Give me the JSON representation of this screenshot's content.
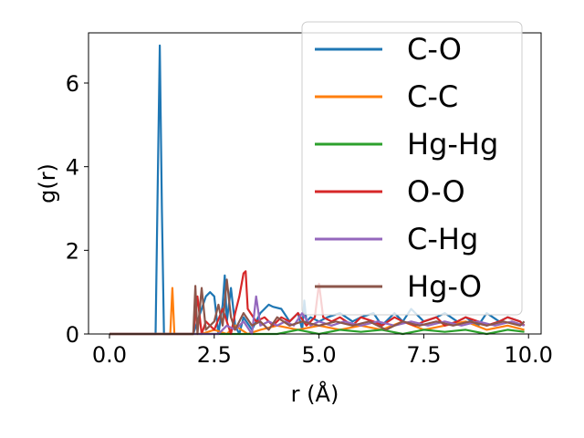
{
  "chart_data": {
    "type": "line",
    "xlabel": "r (Å)",
    "ylabel": "g(r)",
    "xlim": [
      -0.5,
      10.3
    ],
    "ylim": [
      0,
      7.2
    ],
    "xticks": [
      0.0,
      2.5,
      5.0,
      7.5,
      10.0
    ],
    "xtick_labels": [
      "0.0",
      "2.5",
      "5.0",
      "7.5",
      "10.0"
    ],
    "yticks": [
      0,
      2,
      4,
      6
    ],
    "ytick_labels": [
      "0",
      "2",
      "4",
      "6"
    ],
    "grid": false,
    "legend_position": "top-right",
    "series": [
      {
        "name": "C-O",
        "color": "#1f77b4",
        "x": [
          0.0,
          1.1,
          1.15,
          1.2,
          1.25,
          1.3,
          2.0,
          2.3,
          2.4,
          2.5,
          2.6,
          2.7,
          2.75,
          2.8,
          2.9,
          3.0,
          3.1,
          3.2,
          3.4,
          3.6,
          3.8,
          3.9,
          4.1,
          4.3,
          4.5,
          4.6,
          4.65,
          4.7,
          4.8,
          5.0,
          5.2,
          5.5,
          5.8,
          6.0,
          6.3,
          6.5,
          6.8,
          7.0,
          7.2,
          7.5,
          7.8,
          8.0,
          8.3,
          8.5,
          8.8,
          9.0,
          9.3,
          9.5,
          9.8,
          9.9
        ],
        "y": [
          0.0,
          0.0,
          3.5,
          6.9,
          3.0,
          0.0,
          0.0,
          0.9,
          1.0,
          0.9,
          0.0,
          0.7,
          1.4,
          0.3,
          1.1,
          0.2,
          0.0,
          0.4,
          0.1,
          0.5,
          0.7,
          0.65,
          0.6,
          0.3,
          0.5,
          0.1,
          0.8,
          0.3,
          0.4,
          0.3,
          0.4,
          0.5,
          0.3,
          0.4,
          0.5,
          0.2,
          0.5,
          0.3,
          0.6,
          0.3,
          0.4,
          0.5,
          0.3,
          0.4,
          0.2,
          0.5,
          0.3,
          0.4,
          0.3,
          0.2
        ]
      },
      {
        "name": "C-C",
        "color": "#ff7f0e",
        "x": [
          0.0,
          1.45,
          1.5,
          1.55,
          1.6,
          2.2,
          2.5,
          2.8,
          3.0,
          3.3,
          3.6,
          4.0,
          4.5,
          5.0,
          5.5,
          6.0,
          6.5,
          7.0,
          7.5,
          8.0,
          8.5,
          9.0,
          9.5,
          9.9
        ],
        "y": [
          0.0,
          0.0,
          1.1,
          0.0,
          0.0,
          0.0,
          0.1,
          0.0,
          0.2,
          0.0,
          0.1,
          0.2,
          0.1,
          0.2,
          0.1,
          0.2,
          0.1,
          0.3,
          0.1,
          0.2,
          0.3,
          0.1,
          0.2,
          0.1
        ]
      },
      {
        "name": "Hg-Hg",
        "color": "#2ca02c",
        "x": [
          0.0,
          3.0,
          3.5,
          4.0,
          4.5,
          5.0,
          5.5,
          6.0,
          6.5,
          7.0,
          7.5,
          8.0,
          8.5,
          9.0,
          9.5,
          9.9
        ],
        "y": [
          0.0,
          0.0,
          0.0,
          0.0,
          0.1,
          0.0,
          0.1,
          0.05,
          0.1,
          0.0,
          0.1,
          0.05,
          0.1,
          0.0,
          0.1,
          0.05
        ]
      },
      {
        "name": "O-O",
        "color": "#d62728",
        "x": [
          0.0,
          2.0,
          2.1,
          2.2,
          2.3,
          2.5,
          2.7,
          2.9,
          3.0,
          3.1,
          3.2,
          3.25,
          3.3,
          3.5,
          3.7,
          3.9,
          4.1,
          4.3,
          4.5,
          4.7,
          4.9,
          5.0,
          5.1,
          5.3,
          5.5,
          5.8,
          6.0,
          6.3,
          6.5,
          6.8,
          7.0,
          7.3,
          7.5,
          7.8,
          8.0,
          8.3,
          8.5,
          8.8,
          9.0,
          9.3,
          9.5,
          9.8,
          9.9
        ],
        "y": [
          0.0,
          0.0,
          0.9,
          0.0,
          0.3,
          0.1,
          0.6,
          0.0,
          0.5,
          0.9,
          1.45,
          1.5,
          0.6,
          0.3,
          0.4,
          0.2,
          0.4,
          0.3,
          0.5,
          0.2,
          0.4,
          1.2,
          0.4,
          0.3,
          0.4,
          0.2,
          0.4,
          0.3,
          0.2,
          0.4,
          0.3,
          0.2,
          0.3,
          0.4,
          0.2,
          0.3,
          0.4,
          0.3,
          0.2,
          0.3,
          0.4,
          0.3,
          0.2
        ]
      },
      {
        "name": "C-Hg",
        "color": "#9467bd",
        "x": [
          0.0,
          2.6,
          2.8,
          3.0,
          3.2,
          3.4,
          3.5,
          3.6,
          3.8,
          4.0,
          4.2,
          4.4,
          4.6,
          4.8,
          5.0,
          5.3,
          5.6,
          6.0,
          6.4,
          6.8,
          7.2,
          7.6,
          8.0,
          8.4,
          8.8,
          9.2,
          9.6,
          9.9
        ],
        "y": [
          0.0,
          0.0,
          0.2,
          0.1,
          0.3,
          0.0,
          0.9,
          0.2,
          0.3,
          0.2,
          0.3,
          0.2,
          0.5,
          0.2,
          0.3,
          0.2,
          0.3,
          0.2,
          0.3,
          0.2,
          0.3,
          0.2,
          0.3,
          0.2,
          0.3,
          0.2,
          0.3,
          0.2
        ]
      },
      {
        "name": "Hg-O",
        "color": "#8c564b",
        "x": [
          0.0,
          2.0,
          2.05,
          2.1,
          2.2,
          2.3,
          2.5,
          2.6,
          2.7,
          2.8,
          2.9,
          3.0,
          3.2,
          3.4,
          3.6,
          3.8,
          4.0,
          4.3,
          4.6,
          5.0,
          5.4,
          5.8,
          6.2,
          6.6,
          7.0,
          7.4,
          7.8,
          8.2,
          8.6,
          9.0,
          9.4,
          9.8,
          9.9
        ],
        "y": [
          0.0,
          0.0,
          1.15,
          0.0,
          1.1,
          0.1,
          0.3,
          0.7,
          0.2,
          1.3,
          0.4,
          0.1,
          0.5,
          0.2,
          0.3,
          0.1,
          0.4,
          0.2,
          0.3,
          0.2,
          0.3,
          0.2,
          0.3,
          0.1,
          0.3,
          0.2,
          0.3,
          0.2,
          0.3,
          0.2,
          0.3,
          0.2,
          0.3
        ]
      }
    ]
  }
}
